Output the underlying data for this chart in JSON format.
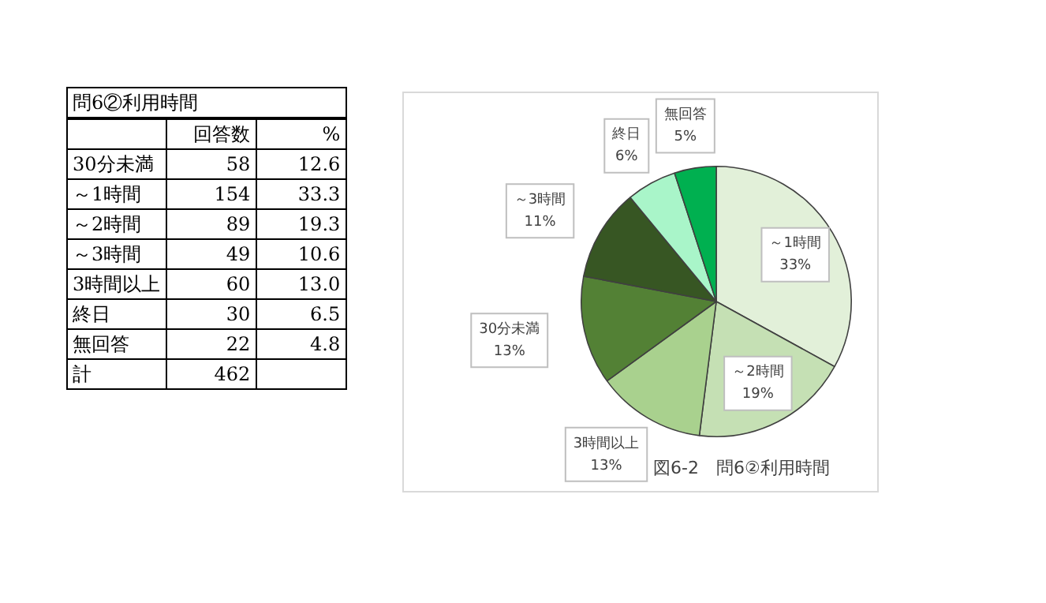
{
  "chart_data": [
    {
      "type": "other",
      "title": "問6②利用時間",
      "categories": [
        "30分未満",
        "～1時間",
        "～2時間",
        "～3時間",
        "3時間以上",
        "終日",
        "無回答",
        "計"
      ],
      "series": [
        {
          "name": "回答数",
          "values": [
            58,
            154,
            89,
            49,
            60,
            30,
            22,
            462
          ]
        },
        {
          "name": "%",
          "values": [
            12.6,
            33.3,
            19.3,
            10.6,
            13.0,
            6.5,
            4.8,
            null
          ],
          "value_labels": [
            "12.6",
            "33.3",
            "19.3",
            "10.6",
            "13.0",
            "6.5",
            "4.8",
            null
          ]
        }
      ],
      "data_labels": true
    },
    {
      "type": "pie",
      "title": "図6-2　問6②利用時間",
      "categories": [
        "～1時間",
        "～2時間",
        "3時間以上",
        "30分未満",
        "～3時間",
        "終日",
        "無回答"
      ],
      "values": [
        33,
        19,
        13,
        13,
        11,
        6,
        5
      ],
      "value_labels": [
        "33%",
        "19%",
        "13%",
        "13%",
        "11%",
        "6%",
        "5%"
      ],
      "colors": [
        "#e2f0d9",
        "#c5e0b4",
        "#a9d18e",
        "#538135",
        "#375623",
        "#a9f5c9",
        "#00b050"
      ]
    }
  ]
}
